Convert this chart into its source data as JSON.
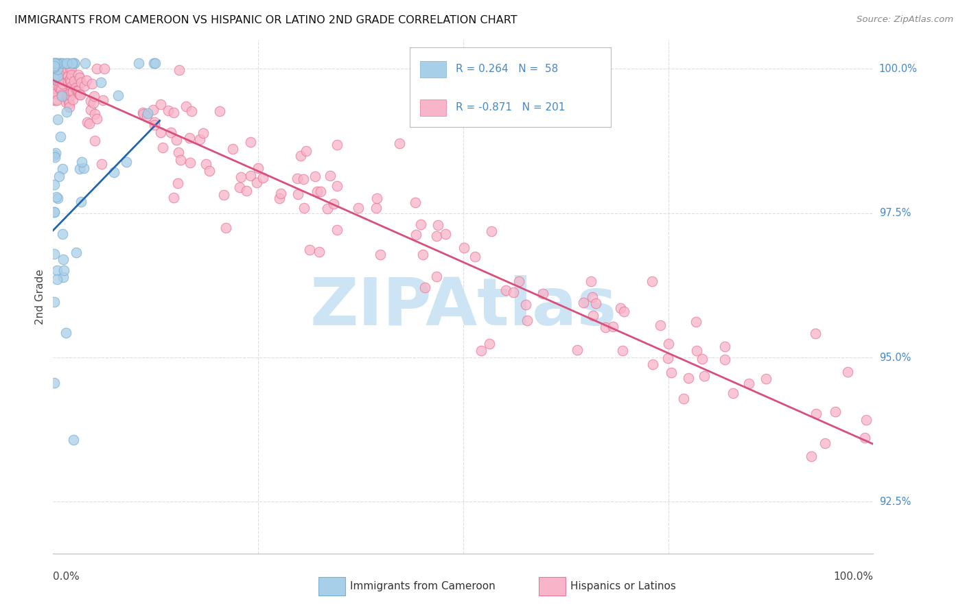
{
  "title": "IMMIGRANTS FROM CAMEROON VS HISPANIC OR LATINO 2ND GRADE CORRELATION CHART",
  "source": "Source: ZipAtlas.com",
  "ylabel": "2nd Grade",
  "ylabel_right_ticks": [
    "100.0%",
    "97.5%",
    "95.0%",
    "92.5%"
  ],
  "ylabel_right_vals": [
    1.0,
    0.975,
    0.95,
    0.925
  ],
  "blue_R": 0.264,
  "blue_N": 58,
  "pink_R": -0.871,
  "pink_N": 201,
  "blue_color": "#a8cfe8",
  "blue_edge_color": "#7bafd4",
  "pink_color": "#f8b4c8",
  "pink_edge_color": "#e87898",
  "blue_line_color": "#2166ac",
  "pink_line_color": "#d94f7a",
  "blue_label": "Immigrants from Cameroon",
  "pink_label": "Hispanics or Latinos",
  "watermark_text": "ZIPAtlas",
  "watermark_color": "#cce4f4",
  "xlim": [
    0.0,
    1.0
  ],
  "ylim": [
    0.916,
    1.005
  ],
  "blue_trend_x": [
    0.0,
    0.13
  ],
  "blue_trend_y": [
    0.972,
    0.991
  ],
  "pink_trend_x": [
    0.0,
    1.0
  ],
  "pink_trend_y": [
    0.998,
    0.935
  ],
  "right_tick_color": "#4488cc",
  "grid_color": "#dddddd",
  "spine_color": "#bbbbbb"
}
